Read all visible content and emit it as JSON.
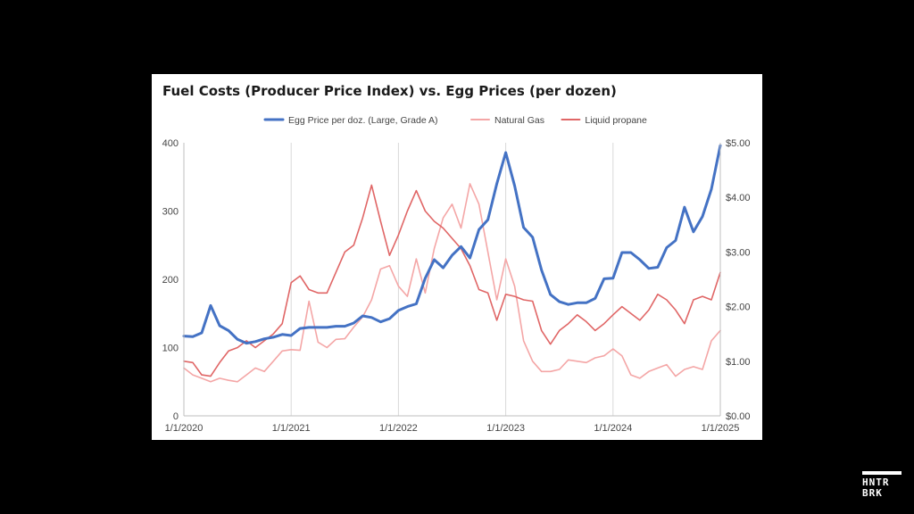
{
  "chart_data": {
    "type": "line",
    "title": "Fuel Costs (Producer Price Index) vs. Egg Prices (per dozen)",
    "x_tick_labels": [
      "1/1/2020",
      "1/1/2021",
      "1/1/2022",
      "1/1/2023",
      "1/1/2024",
      "1/1/2025"
    ],
    "x_range": [
      0,
      60
    ],
    "y_left": {
      "ticks": [
        "0",
        "100",
        "200",
        "300",
        "400"
      ],
      "range": [
        0,
        400
      ]
    },
    "y_right": {
      "ticks": [
        "$0.00",
        "$1.00",
        "$2.00",
        "$3.00",
        "$4.00",
        "$5.00"
      ],
      "range": [
        0,
        5
      ]
    },
    "grid": "vertical",
    "legend_position": "top",
    "series": [
      {
        "name": "Egg Price per doz. (Large, Grade A)",
        "axis": "right",
        "color": "#4472c4",
        "values": [
          1.46,
          1.45,
          1.52,
          2.02,
          1.65,
          1.56,
          1.4,
          1.33,
          1.36,
          1.41,
          1.44,
          1.49,
          1.47,
          1.6,
          1.62,
          1.62,
          1.62,
          1.64,
          1.64,
          1.7,
          1.83,
          1.8,
          1.72,
          1.78,
          1.93,
          2.0,
          2.05,
          2.52,
          2.86,
          2.71,
          2.94,
          3.1,
          2.89,
          3.41,
          3.59,
          4.25,
          4.82,
          4.21,
          3.45,
          3.27,
          2.67,
          2.22,
          2.09,
          2.04,
          2.07,
          2.07,
          2.15,
          2.51,
          2.52,
          2.99,
          2.99,
          2.86,
          2.7,
          2.72,
          3.08,
          3.21,
          3.82,
          3.37,
          3.65,
          4.15,
          4.95
        ]
      },
      {
        "name": "Natural Gas",
        "axis": "left",
        "color": "#f4a6a6",
        "values": [
          70,
          60,
          55,
          50,
          55,
          52,
          50,
          60,
          70,
          65,
          80,
          95,
          97,
          96,
          168,
          108,
          100,
          112,
          113,
          130,
          145,
          170,
          215,
          220,
          190,
          175,
          230,
          180,
          245,
          290,
          310,
          275,
          340,
          310,
          240,
          170,
          230,
          190,
          110,
          80,
          65,
          65,
          68,
          82,
          80,
          78,
          85,
          88,
          98,
          88,
          60,
          55,
          65,
          70,
          75,
          58,
          68,
          72,
          68,
          110,
          125
        ]
      },
      {
        "name": "Liquid propane",
        "axis": "left",
        "color": "#e06666",
        "values": [
          80,
          78,
          60,
          58,
          78,
          95,
          100,
          110,
          100,
          110,
          120,
          135,
          195,
          205,
          185,
          180,
          180,
          210,
          240,
          250,
          290,
          338,
          285,
          235,
          265,
          300,
          330,
          300,
          285,
          275,
          260,
          245,
          220,
          185,
          180,
          140,
          178,
          175,
          170,
          168,
          125,
          105,
          125,
          135,
          148,
          138,
          125,
          135,
          148,
          160,
          150,
          140,
          155,
          178,
          170,
          155,
          135,
          170,
          175,
          170,
          210
        ]
      }
    ]
  },
  "logo": {
    "line1": "HNTR",
    "line2": "BRK"
  }
}
